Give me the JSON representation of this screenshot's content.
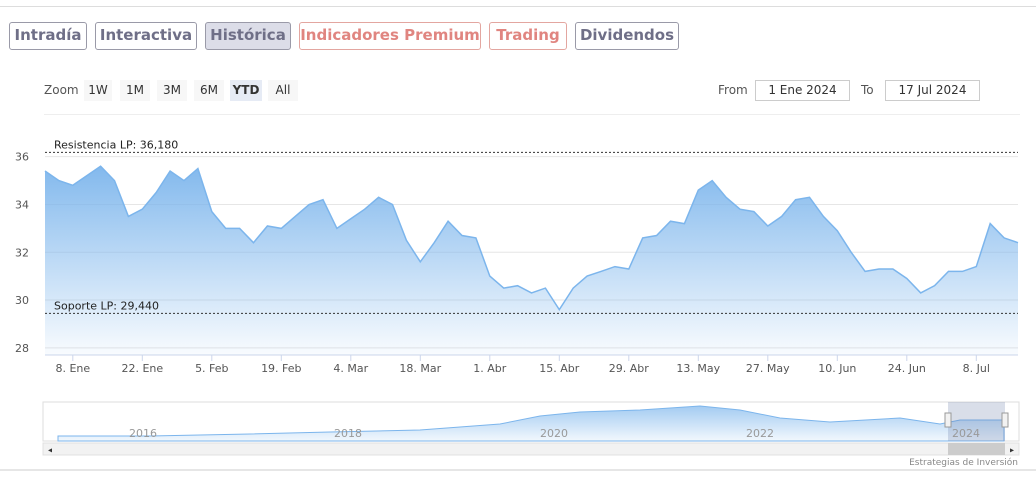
{
  "tabs": [
    "Intradía",
    "Interactiva",
    "Histórica",
    "Indicadores Premium",
    "Trading",
    "Dividendos"
  ],
  "zoom": {
    "label": "Zoom",
    "buttons": [
      "1W",
      "1M",
      "3M",
      "6M",
      "YTD",
      "All"
    ]
  },
  "range": {
    "from_label": "From",
    "from": "1 Ene 2024",
    "to_label": "To",
    "to": "17 Jul 2024"
  },
  "navigator": {
    "years": [
      "2016",
      "2018",
      "2020",
      "2022",
      "2024"
    ]
  },
  "credits": "Estrategias de Inversión",
  "chart_data": {
    "type": "area",
    "color": "#7cb5ec",
    "categories": [
      null,
      null,
      "8. Ene",
      null,
      null,
      null,
      null,
      "22. Ene",
      null,
      null,
      null,
      null,
      "5. Feb",
      null,
      null,
      null,
      null,
      "19. Feb",
      null,
      null,
      null,
      null,
      "4. Mar",
      null,
      null,
      null,
      null,
      "18. Mar",
      null,
      null,
      null,
      null,
      "1. Abr",
      null,
      null,
      null,
      null,
      "15. Abr",
      null,
      null,
      null,
      null,
      "29. Abr",
      null,
      null,
      null,
      null,
      "13. May",
      null,
      null,
      null,
      null,
      "27. May",
      null,
      null,
      null,
      null,
      "10. Jun",
      null,
      null,
      null,
      null,
      "24. Jun",
      null,
      null,
      null,
      null,
      "8. Jul",
      null,
      null,
      null
    ],
    "values": [
      35.4,
      35.0,
      34.8,
      35.2,
      35.6,
      35.0,
      33.5,
      33.8,
      34.5,
      35.4,
      35.0,
      35.5,
      33.7,
      33.0,
      33.0,
      32.4,
      33.1,
      33.0,
      33.5,
      34.0,
      34.2,
      33.0,
      33.4,
      33.8,
      34.3,
      34.0,
      32.5,
      31.6,
      32.4,
      33.3,
      32.7,
      32.6,
      31.0,
      30.5,
      30.6,
      30.3,
      30.5,
      29.6,
      30.5,
      31.0,
      31.2,
      31.4,
      31.3,
      32.6,
      32.7,
      33.3,
      33.2,
      34.6,
      35.0,
      34.3,
      33.8,
      33.7,
      33.1,
      33.5,
      34.2,
      34.3,
      33.5,
      32.9,
      32.0,
      31.2,
      31.3,
      31.3,
      30.9,
      30.3,
      30.6,
      31.2,
      31.2,
      31.4,
      33.2,
      32.6,
      32.4
    ],
    "ylim": [
      27.7,
      37.2
    ],
    "yticks": [
      28,
      30,
      32,
      34,
      36
    ],
    "grid": true,
    "lines": [
      {
        "label": "Resistencia LP: 36,180",
        "value": 36.18
      },
      {
        "label": "Soporte LP: 29,440",
        "value": 29.44
      }
    ]
  }
}
